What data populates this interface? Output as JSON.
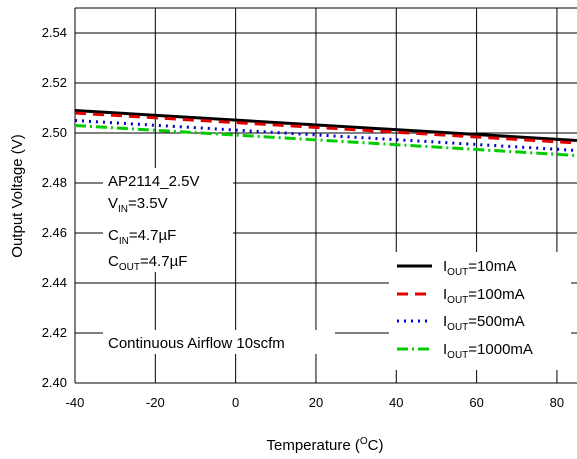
{
  "chart_data": {
    "type": "line",
    "xlabel": {
      "main": "Temperature (",
      "sup": "O",
      "tail": "C)"
    },
    "ylabel": "Output Voltage (V)",
    "xlim": [
      -40,
      85
    ],
    "ylim": [
      2.4,
      2.55
    ],
    "xticks": [
      "-40",
      "-20",
      "0",
      "20",
      "40",
      "60",
      "80"
    ],
    "xtick_values": [
      -40,
      -20,
      0,
      20,
      40,
      60,
      80
    ],
    "yticks": [
      "2.40",
      "2.42",
      "2.44",
      "2.46",
      "2.48",
      "2.50",
      "2.52",
      "2.54"
    ],
    "ytick_values": [
      2.4,
      2.42,
      2.44,
      2.46,
      2.48,
      2.5,
      2.52,
      2.54
    ],
    "grid": true,
    "legend_position": "bottom-right",
    "series": [
      {
        "name": {
          "main": "I",
          "sub": "OUT",
          "tail": "=10mA"
        },
        "color": "#000000",
        "style": "solid",
        "x": [
          -40,
          85
        ],
        "y": [
          2.509,
          2.497
        ]
      },
      {
        "name": {
          "main": "I",
          "sub": "OUT",
          "tail": "=100mA"
        },
        "color": "#e00000",
        "style": "dash",
        "x": [
          -40,
          85
        ],
        "y": [
          2.508,
          2.496
        ]
      },
      {
        "name": {
          "main": "I",
          "sub": "OUT",
          "tail": "=500mA"
        },
        "color": "#0000c8",
        "style": "dot",
        "x": [
          -40,
          85
        ],
        "y": [
          2.505,
          2.493
        ]
      },
      {
        "name": {
          "main": "I",
          "sub": "OUT",
          "tail": "=1000mA"
        },
        "color": "#00cc00",
        "style": "dashdot",
        "x": [
          -40,
          85
        ],
        "y": [
          2.503,
          2.491
        ]
      }
    ],
    "annotations": {
      "device": "AP2114_2.5V",
      "vin": {
        "main": "V",
        "sub": "IN",
        "tail": "=3.5V"
      },
      "cin": {
        "main": "C",
        "sub": "IN",
        "tail": "=4.7µF"
      },
      "cout": {
        "main": "C",
        "sub": "OUT",
        "tail": "=4.7µF"
      },
      "condition": "Continuous Airflow 10scfm"
    }
  }
}
